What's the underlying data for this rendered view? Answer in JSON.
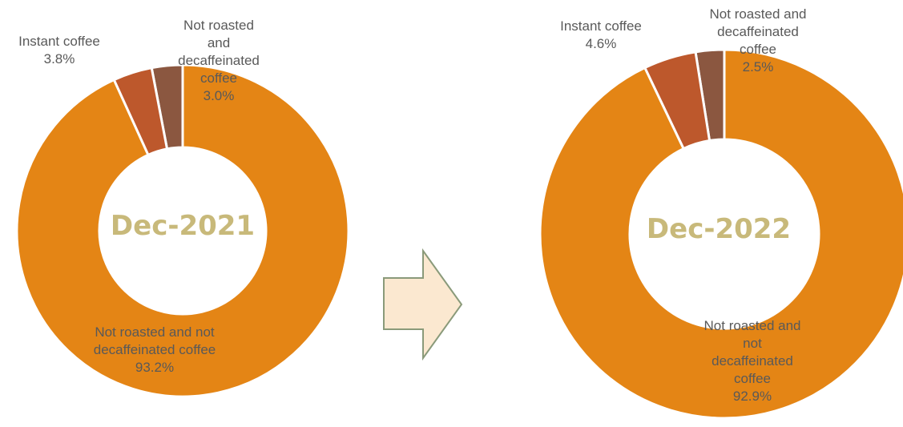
{
  "colors": {
    "main_slice": "#E48515",
    "instant_slice": "#BD582C",
    "decaf_slice": "#8B5740",
    "center_title": "#C8B97A",
    "arrow_fill": "#FBE8D0",
    "arrow_stroke": "#8A9A7A",
    "label_text": "#595959",
    "slice_border": "#ffffff"
  },
  "arrow": {
    "icon": "right-arrow-icon"
  },
  "chart_data": [
    {
      "type": "pie",
      "variant": "donut",
      "title": "Dec-2021",
      "slices": [
        {
          "label": "Not roasted and not decaffeinated coffee",
          "value": 93.2,
          "value_label": "93.2%"
        },
        {
          "label": "Instant coffee",
          "value": 3.8,
          "value_label": "3.8%"
        },
        {
          "label": "Not roasted and decaffeinated coffee",
          "value": 3.0,
          "value_label": "3.0%"
        }
      ],
      "labels": {
        "main": [
          "Not roasted and not",
          "decaffeinated coffee",
          "93.2%"
        ],
        "instant": [
          "Instant coffee",
          "3.8%"
        ],
        "decaf": [
          "Not roasted",
          "and",
          "decaffeinated",
          "coffee",
          "3.0%"
        ]
      }
    },
    {
      "type": "pie",
      "variant": "donut",
      "title": "Dec-2022",
      "slices": [
        {
          "label": "Not roasted and not decaffeinated coffee",
          "value": 92.9,
          "value_label": "92.9%"
        },
        {
          "label": "Instant coffee",
          "value": 4.6,
          "value_label": "4.6%"
        },
        {
          "label": "Not roasted and decaffeinated coffee",
          "value": 2.5,
          "value_label": "2.5%"
        }
      ],
      "labels": {
        "main": [
          "Not roasted and",
          "not",
          "decaffeinated",
          "coffee",
          "92.9%"
        ],
        "instant": [
          "Instant coffee",
          "4.6%"
        ],
        "decaf": [
          "Not roasted and",
          "decaffeinated",
          "coffee",
          "2.5%"
        ]
      }
    }
  ]
}
